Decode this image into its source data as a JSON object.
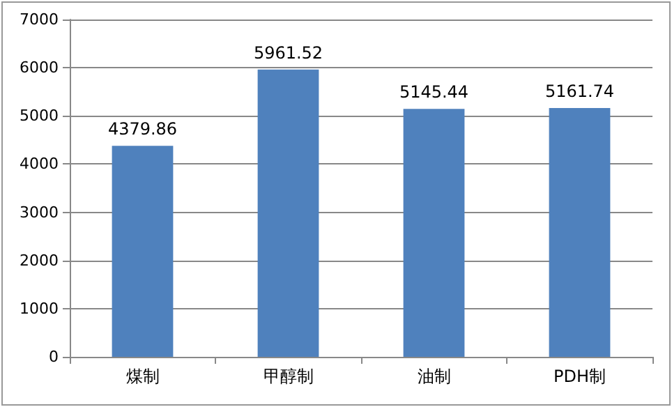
{
  "chart_data": {
    "type": "bar",
    "categories": [
      "煤制",
      "甲醇制",
      "油制",
      "PDH制"
    ],
    "values": [
      4379.86,
      5961.52,
      5145.44,
      5161.74
    ],
    "color": "#4f81bd",
    "ylim": [
      0,
      7000
    ],
    "yticks": [
      0,
      1000,
      2000,
      3000,
      4000,
      5000,
      6000,
      7000
    ],
    "grid": "y",
    "data_labels": true
  }
}
